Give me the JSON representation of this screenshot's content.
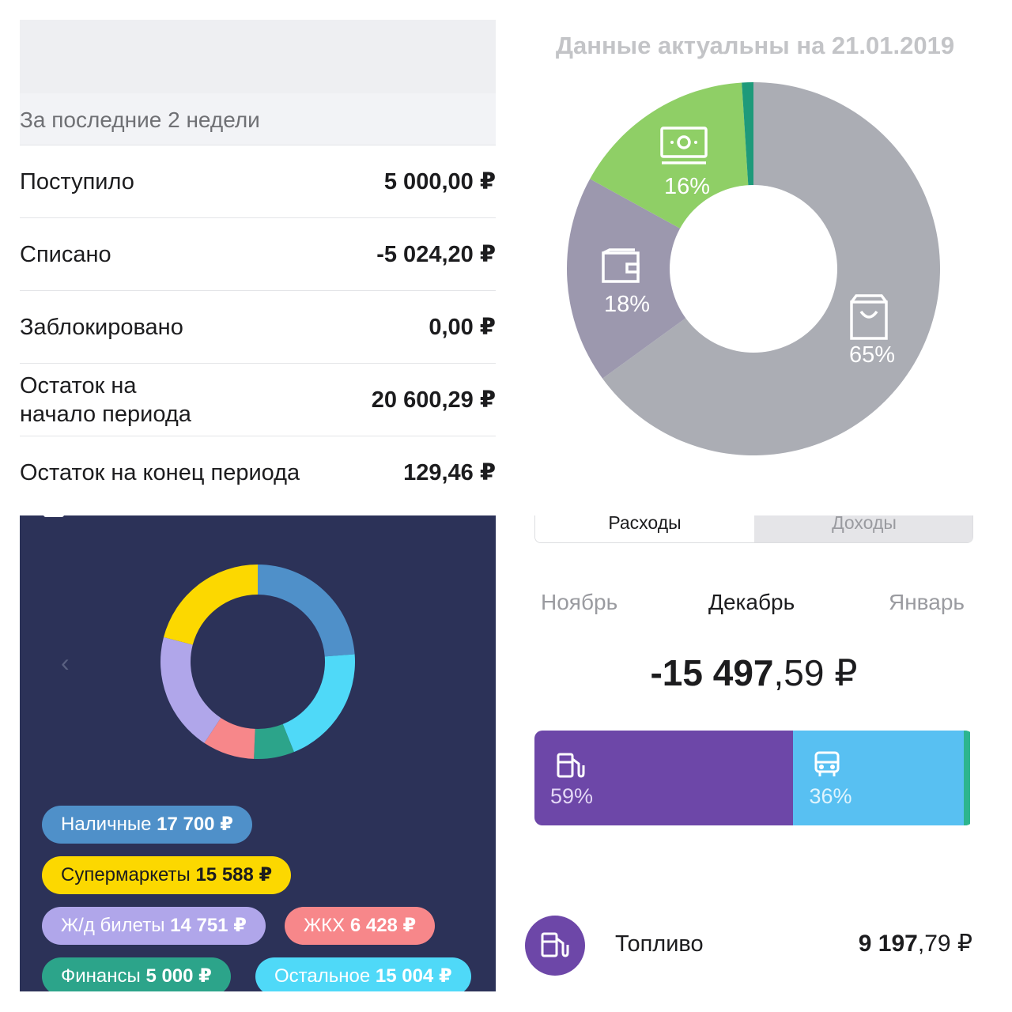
{
  "summary": {
    "period": "За последние 2 недели",
    "rows": [
      {
        "label": "Поступило",
        "value": "5 000,00 ₽"
      },
      {
        "label": "Списано",
        "value": "-5 024,20 ₽"
      },
      {
        "label": "Заблокировано",
        "value": "0,00 ₽"
      },
      {
        "label_line1": "Остаток на",
        "label_line2": "начало периода",
        "value": "20 600,29 ₽"
      },
      {
        "label": "Остаток на конец периода",
        "value": "129,46 ₽"
      }
    ]
  },
  "top_right": {
    "date_note": "Данные актуальны на 21.01.2019",
    "donut": {
      "slices": [
        {
          "name": "bag-icon",
          "percent": 65,
          "label": "65%",
          "color": "#abadb4"
        },
        {
          "name": "wallet-icon",
          "percent": 18,
          "label": "18%",
          "color": "#9c98ae"
        },
        {
          "name": "cash-icon",
          "percent": 16,
          "label": "16%",
          "color": "#8fcf66"
        },
        {
          "name": "other",
          "percent": 1,
          "color": "#1e9a7a"
        }
      ]
    }
  },
  "bottom_left": {
    "ring": [
      {
        "category": "Наличные",
        "value": 17700,
        "color": "#4f90c9"
      },
      {
        "category": "Остальное",
        "value": 15004,
        "color": "#4fd9f8"
      },
      {
        "category": "Финансы",
        "value": 5000,
        "color": "#2ca48a"
      },
      {
        "category": "ЖКХ",
        "value": 6428,
        "color": "#f7878a"
      },
      {
        "category": "Ж/д билеты",
        "value": 14751,
        "color": "#b0a6ea"
      },
      {
        "category": "Супермаркеты",
        "value": 15588,
        "color": "#fcd800"
      }
    ],
    "pills": [
      {
        "label": "Наличные",
        "amount": "17 700 ₽",
        "color": "#4f90c9",
        "text_color": "#ffffff"
      },
      {
        "label": "Супермаркеты",
        "amount": "15 588 ₽",
        "color": "#fcd800",
        "text_color": "#1c1c1e"
      },
      {
        "label": "Ж/д билеты",
        "amount": "14 751 ₽",
        "color": "#b0a6ea",
        "text_color": "#ffffff"
      },
      {
        "label": "ЖКХ",
        "amount": "6 428 ₽",
        "color": "#f7878a",
        "text_color": "#ffffff"
      },
      {
        "label": "Финансы",
        "amount": "5 000 ₽",
        "color": "#2ca48a",
        "text_color": "#ffffff"
      },
      {
        "label": "Остальное",
        "amount": "15 004 ₽",
        "color": "#4fd9f8",
        "text_color": "#ffffff"
      }
    ],
    "prev_icon": "chevron-left-icon"
  },
  "bottom_right": {
    "tabs": {
      "expenses": "Расходы",
      "income": "Доходы"
    },
    "months": {
      "prev": "Ноябрь",
      "current": "Декабрь",
      "next": "Январь"
    },
    "total": {
      "integer": "-15 497",
      "fraction": ",59 ₽"
    },
    "bar": [
      {
        "icon": "fuel-icon",
        "percent": 59,
        "label": "59%",
        "color": "#6d47a8"
      },
      {
        "icon": "bus-icon",
        "percent": 36,
        "label": "36%",
        "color": "#58c0f2"
      },
      {
        "icon": "",
        "percent": 1.5,
        "label": "",
        "color": "#2db58f"
      }
    ],
    "category": {
      "icon": "fuel-icon",
      "name": "Топливо",
      "integer": "9 197",
      "fraction": ",79 ₽"
    }
  }
}
